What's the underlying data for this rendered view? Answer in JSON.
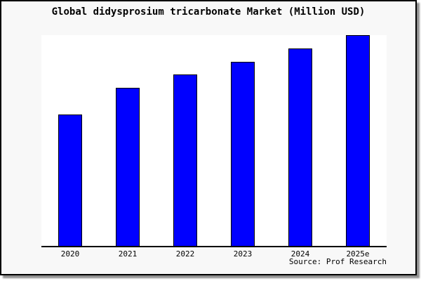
{
  "figure": {
    "background": "#f8f8f8",
    "border_color": "#000000",
    "shadow_color": "#8f8f8f"
  },
  "chart_data": {
    "type": "bar",
    "title": "Global didysprosium tricarbonate Market (Million USD)",
    "categories": [
      "2020",
      "2021",
      "2022",
      "2023",
      "2024",
      "2025e"
    ],
    "values": [
      100,
      120,
      130,
      140,
      150,
      160
    ],
    "xlabel": "",
    "ylabel": "",
    "ylim": [
      0,
      160
    ],
    "y_axis_labels_visible": false,
    "grid": false,
    "legend": null,
    "bar_color": "#0000ff",
    "bar_edge_color": "#000000",
    "plot_background": "#ffffff",
    "source": "Source: Prof Research"
  }
}
